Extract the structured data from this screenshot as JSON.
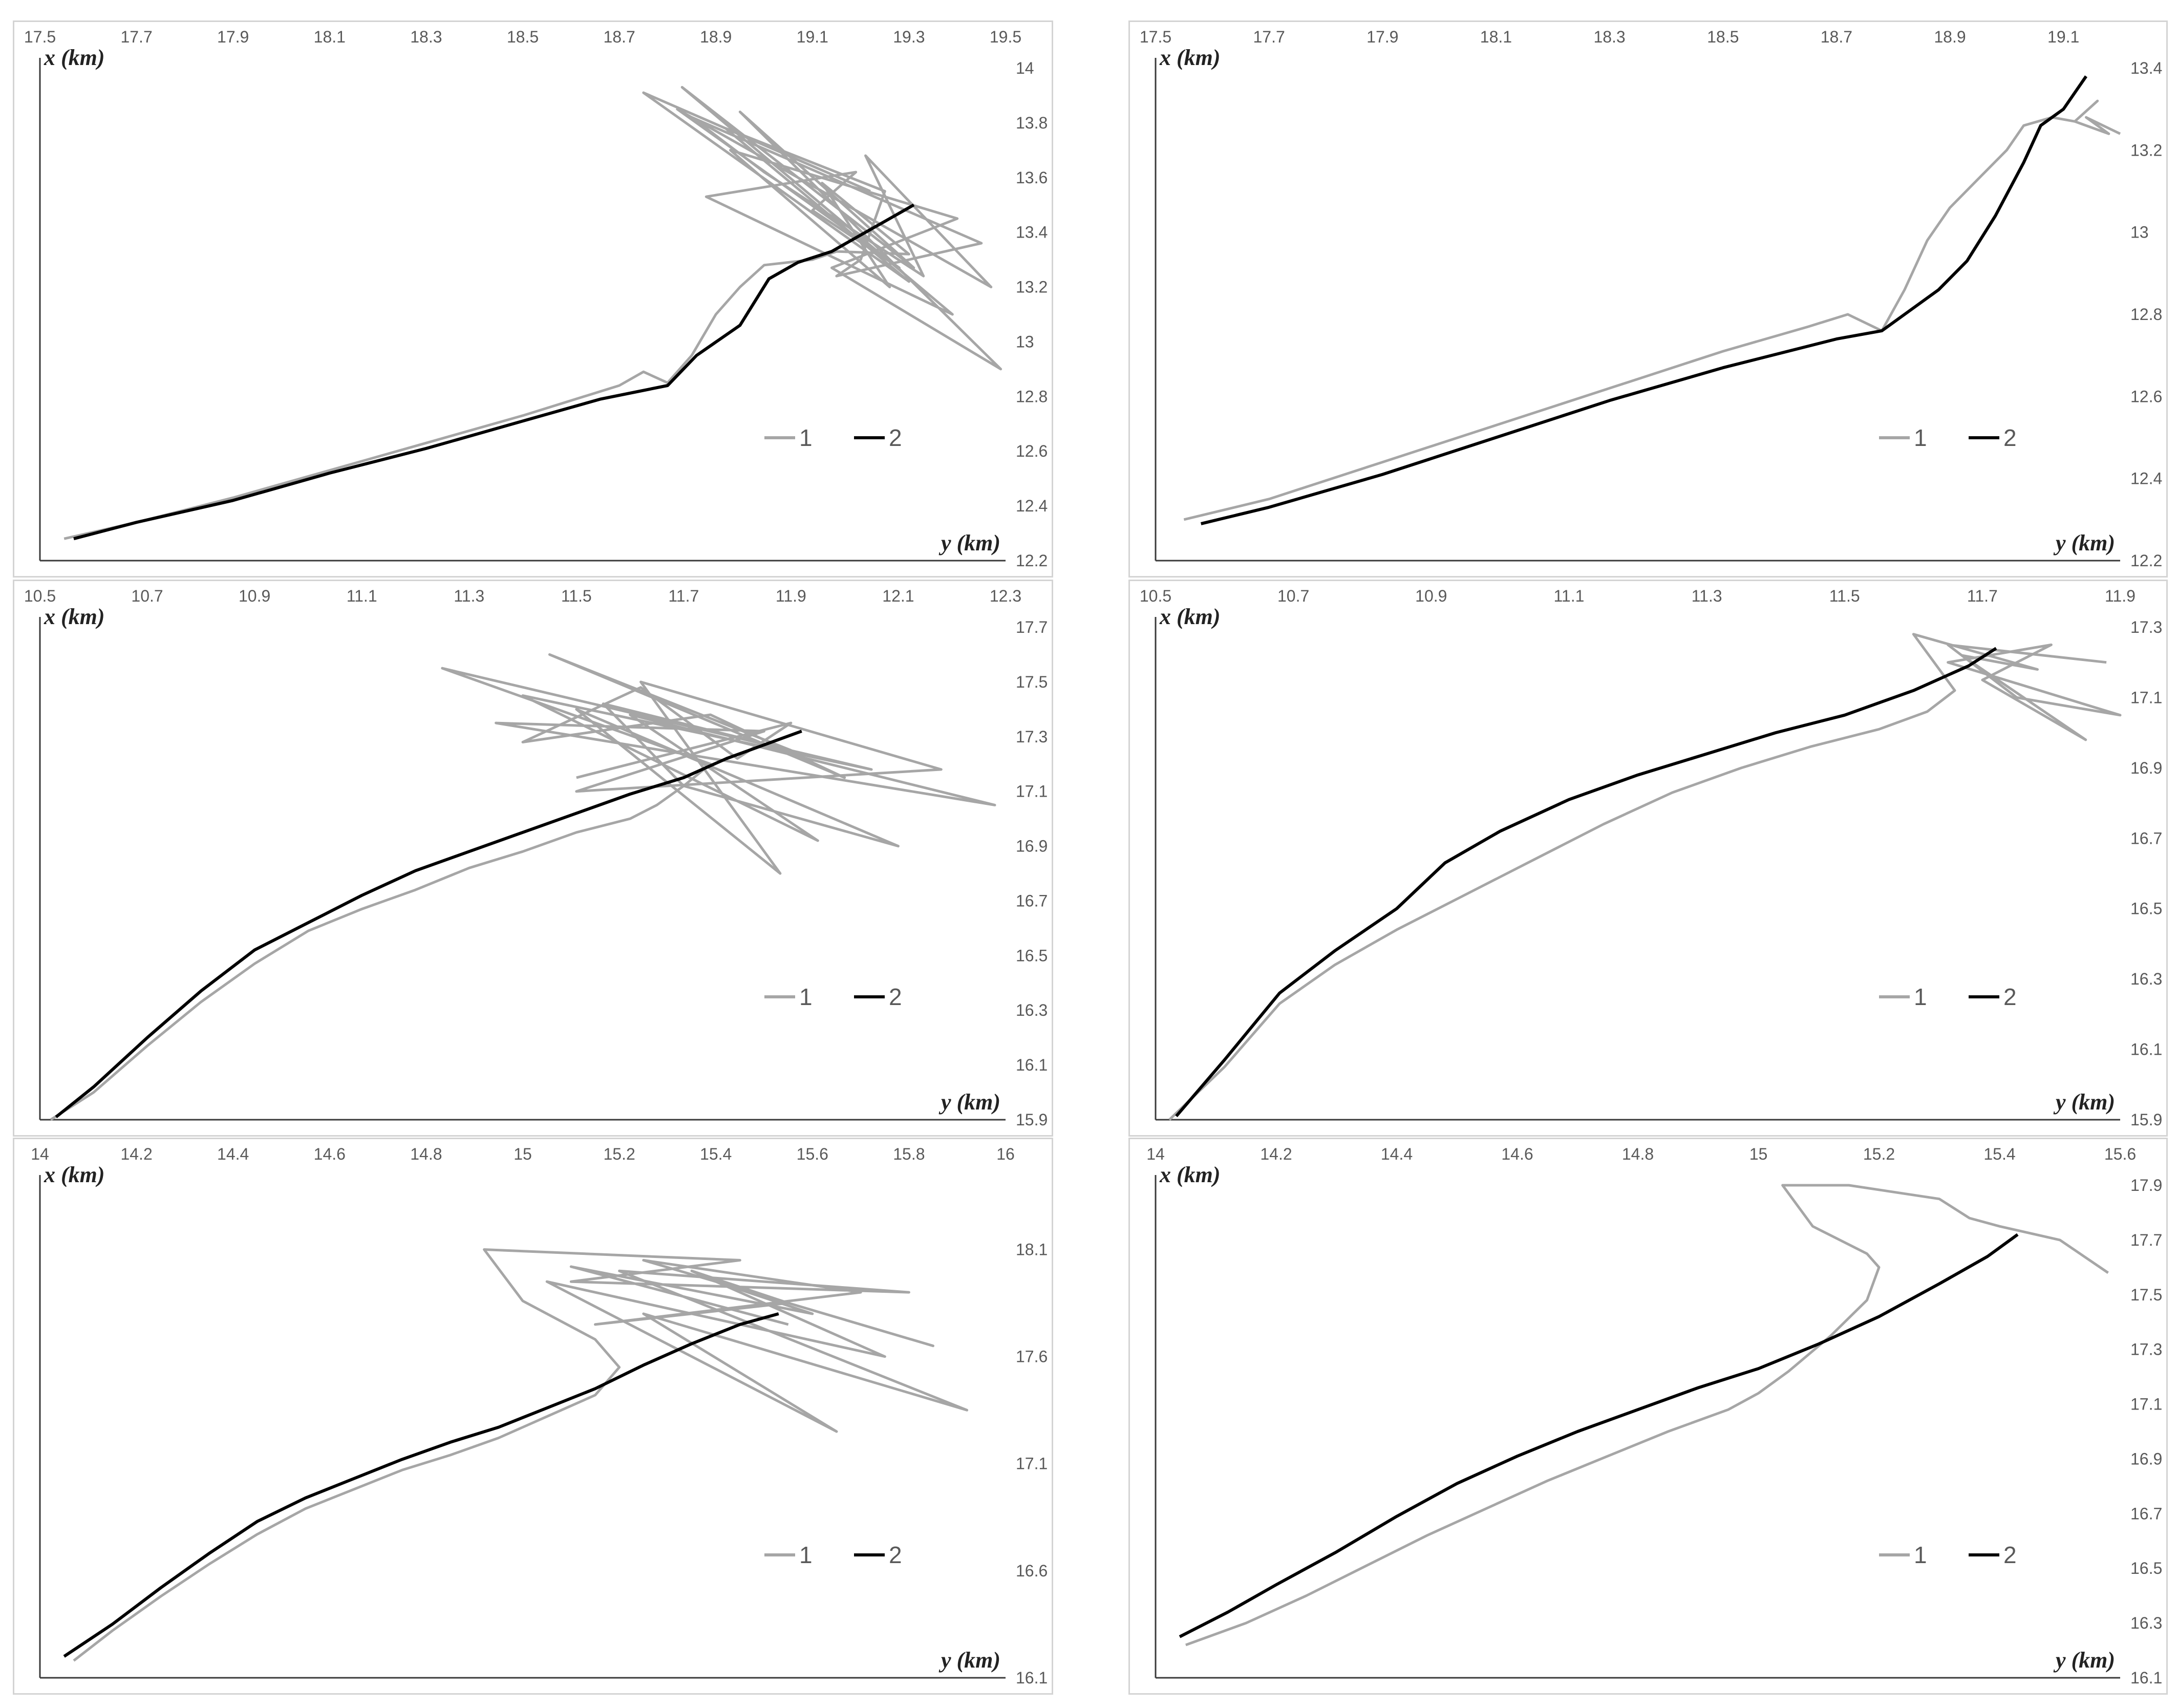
{
  "chart_data": [
    {
      "type": "line",
      "xlabel": "y (km)",
      "ylabel": "x (km)",
      "xlim": [
        17.5,
        19.5
      ],
      "ylim": [
        12.2,
        14.0
      ],
      "xticks": [
        "17.5",
        "17.7",
        "17.9",
        "18.1",
        "18.3",
        "18.5",
        "18.7",
        "18.9",
        "19.1",
        "19.3",
        "19.5"
      ],
      "yticks": [
        "14",
        "13.8",
        "13.6",
        "13.4",
        "13.2",
        "13",
        "12.8",
        "12.6",
        "12.4",
        "12.2"
      ],
      "legend": [
        "1",
        "2"
      ],
      "legend_position": "lower-right",
      "grid": false,
      "series": [
        {
          "name": "2",
          "color": "#000000",
          "x": [
            17.57,
            17.7,
            17.9,
            18.1,
            18.3,
            18.5,
            18.66,
            18.8,
            18.86,
            18.95,
            19.01,
            19.07,
            19.14,
            19.2,
            19.25,
            19.31
          ],
          "y": [
            12.28,
            12.34,
            12.42,
            12.52,
            12.61,
            12.71,
            12.79,
            12.84,
            12.95,
            13.06,
            13.23,
            13.29,
            13.33,
            13.39,
            13.44,
            13.5
          ]
        },
        {
          "name": "1",
          "color": "#a6a6a6",
          "x": [
            17.55,
            17.7,
            17.9,
            18.1,
            18.3,
            18.5,
            18.7,
            18.75,
            18.8,
            18.85,
            18.9,
            18.95,
            19.0,
            19.1,
            19.15,
            19.3,
            19.12,
            19.26,
            18.93,
            19.4,
            19.14,
            19.49,
            18.95,
            19.31,
            18.83,
            19.39,
            18.88,
            19.19,
            19.1,
            19.28,
            18.82,
            19.47,
            19.21,
            19.33,
            19.0,
            18.85,
            19.45,
            19.15,
            19.2,
            19.25,
            18.92,
            19.3,
            18.75,
            19.22
          ],
          "y": [
            12.28,
            12.34,
            12.43,
            12.53,
            12.63,
            12.73,
            12.84,
            12.89,
            12.85,
            12.95,
            13.1,
            13.2,
            13.28,
            13.3,
            13.33,
            13.32,
            13.58,
            13.2,
            13.7,
            13.45,
            13.27,
            12.9,
            13.84,
            13.27,
            13.93,
            13.1,
            13.53,
            13.62,
            13.48,
            13.27,
            13.85,
            13.2,
            13.68,
            13.24,
            13.62,
            13.82,
            13.36,
            13.24,
            13.3,
            13.55,
            13.78,
            13.22,
            13.91,
            13.55
          ]
        }
      ]
    },
    {
      "type": "line",
      "xlabel": "y (km)",
      "ylabel": "x (km)",
      "xlim": [
        17.5,
        19.2
      ],
      "ylim": [
        12.2,
        13.4
      ],
      "xticks": [
        "17.5",
        "17.7",
        "17.9",
        "18.1",
        "18.3",
        "18.5",
        "18.7",
        "18.9",
        "19.1"
      ],
      "yticks": [
        "13.4",
        "13.2",
        "13",
        "12.8",
        "12.6",
        "12.4",
        "12.2"
      ],
      "legend": [
        "1",
        "2"
      ],
      "legend_position": "lower-right",
      "grid": false,
      "series": [
        {
          "name": "2",
          "color": "#000000",
          "x": [
            17.58,
            17.7,
            17.9,
            18.1,
            18.3,
            18.5,
            18.7,
            18.78,
            18.83,
            18.88,
            18.93,
            18.98,
            19.03,
            19.06,
            19.1,
            19.14
          ],
          "y": [
            12.29,
            12.33,
            12.41,
            12.5,
            12.59,
            12.67,
            12.74,
            12.76,
            12.81,
            12.86,
            12.93,
            13.04,
            13.17,
            13.26,
            13.3,
            13.38
          ]
        },
        {
          "name": "1",
          "color": "#a6a6a6",
          "x": [
            17.55,
            17.7,
            17.9,
            18.1,
            18.3,
            18.5,
            18.65,
            18.72,
            18.78,
            18.82,
            18.86,
            18.9,
            18.95,
            19.0,
            19.03,
            19.08,
            19.12,
            19.16,
            19.12,
            19.18,
            19.14,
            19.2
          ],
          "y": [
            12.3,
            12.35,
            12.44,
            12.53,
            12.62,
            12.71,
            12.77,
            12.8,
            12.76,
            12.86,
            12.98,
            13.06,
            13.13,
            13.2,
            13.26,
            13.28,
            13.27,
            13.32,
            13.27,
            13.24,
            13.28,
            13.24
          ]
        }
      ]
    },
    {
      "type": "line",
      "xlabel": "y (km)",
      "ylabel": "x (km)",
      "xlim": [
        10.5,
        12.3
      ],
      "ylim": [
        15.9,
        17.7
      ],
      "xticks": [
        "10.5",
        "10.7",
        "10.9",
        "11.1",
        "11.3",
        "11.5",
        "11.7",
        "11.9",
        "12.1",
        "12.3"
      ],
      "yticks": [
        "17.7",
        "17.5",
        "17.3",
        "17.1",
        "16.9",
        "16.7",
        "16.5",
        "16.3",
        "16.1",
        "15.9"
      ],
      "legend": [
        "1",
        "2"
      ],
      "legend_position": "lower-right",
      "grid": false,
      "series": [
        {
          "name": "2",
          "color": "#000000",
          "x": [
            10.53,
            10.6,
            10.7,
            10.8,
            10.9,
            11.0,
            11.1,
            11.2,
            11.3,
            11.4,
            11.5,
            11.6,
            11.7,
            11.78,
            11.85,
            11.92
          ],
          "y": [
            15.91,
            16.02,
            16.2,
            16.37,
            16.52,
            16.62,
            16.72,
            16.81,
            16.88,
            16.95,
            17.02,
            17.09,
            17.15,
            17.22,
            17.27,
            17.32
          ]
        },
        {
          "name": "1",
          "color": "#a6a6a6",
          "x": [
            10.52,
            10.6,
            10.7,
            10.8,
            10.9,
            11.0,
            11.1,
            11.2,
            11.3,
            11.4,
            11.5,
            11.6,
            11.65,
            11.7,
            11.75,
            11.25,
            12.05,
            11.4,
            11.95,
            11.6,
            12.28,
            11.35,
            11.85,
            11.5,
            12.18,
            11.62,
            11.88,
            11.5,
            12.1,
            11.7,
            11.55,
            11.9,
            11.45,
            12.0,
            11.75,
            11.4,
            11.62,
            11.8,
            11.9,
            11.5
          ],
          "y": [
            15.9,
            16.0,
            16.17,
            16.33,
            16.47,
            16.59,
            16.67,
            16.74,
            16.82,
            16.88,
            16.95,
            17.0,
            17.05,
            17.12,
            17.2,
            17.55,
            17.18,
            17.45,
            16.92,
            17.38,
            17.05,
            17.35,
            17.32,
            17.1,
            17.18,
            17.5,
            16.8,
            17.4,
            16.9,
            17.12,
            17.42,
            17.25,
            17.6,
            17.15,
            17.38,
            17.28,
            17.48,
            17.22,
            17.35,
            17.15
          ]
        }
      ]
    },
    {
      "type": "line",
      "xlabel": "y (km)",
      "ylabel": "x (km)",
      "xlim": [
        10.5,
        11.9
      ],
      "ylim": [
        15.9,
        17.3
      ],
      "xticks": [
        "10.5",
        "10.7",
        "10.9",
        "11.1",
        "11.3",
        "11.5",
        "11.7",
        "11.9"
      ],
      "yticks": [
        "17.3",
        "17.1",
        "16.9",
        "16.7",
        "16.5",
        "16.3",
        "16.1",
        "15.9"
      ],
      "legend": [
        "1",
        "2"
      ],
      "legend_position": "lower-right",
      "grid": false,
      "series": [
        {
          "name": "2",
          "color": "#000000",
          "x": [
            10.53,
            10.6,
            10.68,
            10.76,
            10.85,
            10.92,
            11.0,
            11.1,
            11.2,
            11.3,
            11.4,
            11.5,
            11.6,
            11.68,
            11.72
          ],
          "y": [
            15.91,
            16.07,
            16.26,
            16.38,
            16.5,
            16.63,
            16.72,
            16.81,
            16.88,
            16.94,
            17.0,
            17.05,
            17.12,
            17.19,
            17.24
          ]
        },
        {
          "name": "1",
          "color": "#a6a6a6",
          "x": [
            10.52,
            10.6,
            10.68,
            10.76,
            10.85,
            10.95,
            11.05,
            11.15,
            11.25,
            11.35,
            11.45,
            11.55,
            11.62,
            11.66,
            11.6,
            11.78,
            11.67,
            11.85,
            11.7,
            11.8,
            11.65,
            11.9,
            11.75,
            11.65,
            11.88
          ],
          "y": [
            15.9,
            16.05,
            16.23,
            16.34,
            16.44,
            16.54,
            16.64,
            16.74,
            16.83,
            16.9,
            16.96,
            17.01,
            17.06,
            17.12,
            17.28,
            17.18,
            17.22,
            16.98,
            17.15,
            17.25,
            17.2,
            17.05,
            17.1,
            17.25,
            17.2
          ]
        }
      ]
    },
    {
      "type": "line",
      "xlabel": "y (km)",
      "ylabel": "x (km)",
      "xlim": [
        14.0,
        16.0
      ],
      "ylim": [
        16.1,
        18.4
      ],
      "xticks": [
        "14",
        "14.2",
        "14.4",
        "14.6",
        "14.8",
        "15",
        "15.2",
        "15.4",
        "15.6",
        "15.8",
        "16"
      ],
      "yticks": [
        "18.1",
        "17.6",
        "17.1",
        "16.6",
        "16.1"
      ],
      "legend": [
        "1",
        "2"
      ],
      "legend_position": "lower-right",
      "grid": false,
      "series": [
        {
          "name": "2",
          "color": "#000000",
          "x": [
            14.05,
            14.15,
            14.25,
            14.35,
            14.45,
            14.55,
            14.65,
            14.75,
            14.85,
            14.95,
            15.05,
            15.15,
            15.25,
            15.35,
            15.45,
            15.53
          ],
          "y": [
            16.2,
            16.35,
            16.52,
            16.68,
            16.83,
            16.94,
            17.03,
            17.12,
            17.2,
            17.27,
            17.36,
            17.45,
            17.56,
            17.66,
            17.75,
            17.8
          ]
        },
        {
          "name": "1",
          "color": "#a6a6a6",
          "x": [
            14.07,
            14.15,
            14.25,
            14.35,
            14.45,
            14.55,
            14.65,
            14.75,
            14.85,
            14.95,
            15.05,
            15.15,
            15.2,
            15.15,
            15.0,
            14.92,
            15.45,
            15.1,
            15.8,
            15.2,
            15.92,
            15.25,
            15.65,
            15.05,
            15.75,
            15.35,
            15.55,
            15.15,
            15.7,
            15.25,
            15.85,
            15.4,
            15.6,
            15.1,
            15.55
          ],
          "y": [
            16.18,
            16.32,
            16.48,
            16.63,
            16.77,
            16.89,
            16.98,
            17.07,
            17.14,
            17.22,
            17.32,
            17.42,
            17.55,
            17.68,
            17.86,
            18.1,
            18.05,
            17.95,
            17.9,
            18.0,
            17.35,
            17.8,
            17.25,
            17.95,
            17.6,
            18.0,
            17.85,
            17.75,
            17.9,
            18.05,
            17.65,
            17.95,
            17.8,
            18.02,
            17.75
          ]
        }
      ]
    },
    {
      "type": "line",
      "xlabel": "y (km)",
      "ylabel": "x (km)",
      "xlim": [
        14.0,
        15.6
      ],
      "ylim": [
        16.1,
        17.9
      ],
      "xticks": [
        "14",
        "14.2",
        "14.4",
        "14.6",
        "14.8",
        "15",
        "15.2",
        "15.4",
        "15.6"
      ],
      "yticks": [
        "17.9",
        "17.7",
        "17.5",
        "17.3",
        "17.1",
        "16.9",
        "16.7",
        "16.5",
        "16.3",
        "16.1"
      ],
      "legend": [
        "1",
        "2"
      ],
      "legend_position": "lower-right",
      "grid": false,
      "series": [
        {
          "name": "2",
          "color": "#000000",
          "x": [
            14.04,
            14.12,
            14.2,
            14.3,
            14.4,
            14.5,
            14.6,
            14.7,
            14.8,
            14.9,
            15.0,
            15.1,
            15.2,
            15.3,
            15.38,
            15.43
          ],
          "y": [
            16.25,
            16.34,
            16.44,
            16.56,
            16.69,
            16.81,
            16.91,
            17.0,
            17.08,
            17.16,
            17.23,
            17.32,
            17.42,
            17.54,
            17.64,
            17.72
          ]
        },
        {
          "name": "1",
          "color": "#a6a6a6",
          "x": [
            14.05,
            14.15,
            14.25,
            14.35,
            14.45,
            14.55,
            14.65,
            14.75,
            14.85,
            14.95,
            15.0,
            15.05,
            15.12,
            15.18,
            15.2,
            15.18,
            15.09,
            15.04,
            15.15,
            15.3,
            15.35,
            15.4,
            15.5,
            15.58
          ],
          "y": [
            16.22,
            16.3,
            16.4,
            16.51,
            16.62,
            16.72,
            16.82,
            16.91,
            17.0,
            17.08,
            17.14,
            17.22,
            17.35,
            17.48,
            17.6,
            17.65,
            17.75,
            17.9,
            17.9,
            17.85,
            17.78,
            17.75,
            17.7,
            17.58
          ]
        }
      ]
    }
  ]
}
